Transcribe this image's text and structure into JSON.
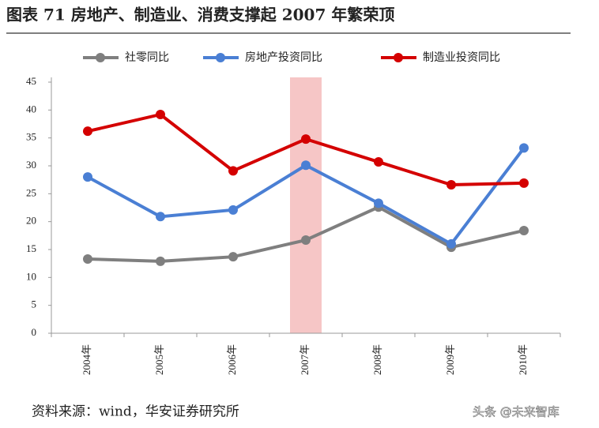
{
  "chart_data": {
    "type": "line",
    "title": "图表 71 房地产、制造业、消费支撑起 2007 年繁荣顶",
    "categories": [
      "2004年",
      "2005年",
      "2006年",
      "2007年",
      "2008年",
      "2009年",
      "2010年"
    ],
    "series": [
      {
        "name": "社零同比",
        "color": "#7f7f7f",
        "values": [
          13.3,
          12.9,
          13.7,
          16.7,
          22.6,
          15.4,
          18.4
        ]
      },
      {
        "name": "房地产投资同比",
        "color": "#4a7fd4",
        "values": [
          28.0,
          20.9,
          22.1,
          30.1,
          23.3,
          16.0,
          33.2
        ]
      },
      {
        "name": "制造业投资同比",
        "color": "#d40000",
        "values": [
          36.2,
          39.2,
          29.1,
          34.8,
          30.7,
          26.6,
          26.9
        ]
      }
    ],
    "ylim": [
      0,
      45
    ],
    "yticks": [
      0,
      5,
      10,
      15,
      20,
      25,
      30,
      35,
      40,
      45
    ],
    "legend": "top",
    "source": "资料来源：wind，华安证券研究所",
    "watermark": "头条 @未来智库"
  }
}
